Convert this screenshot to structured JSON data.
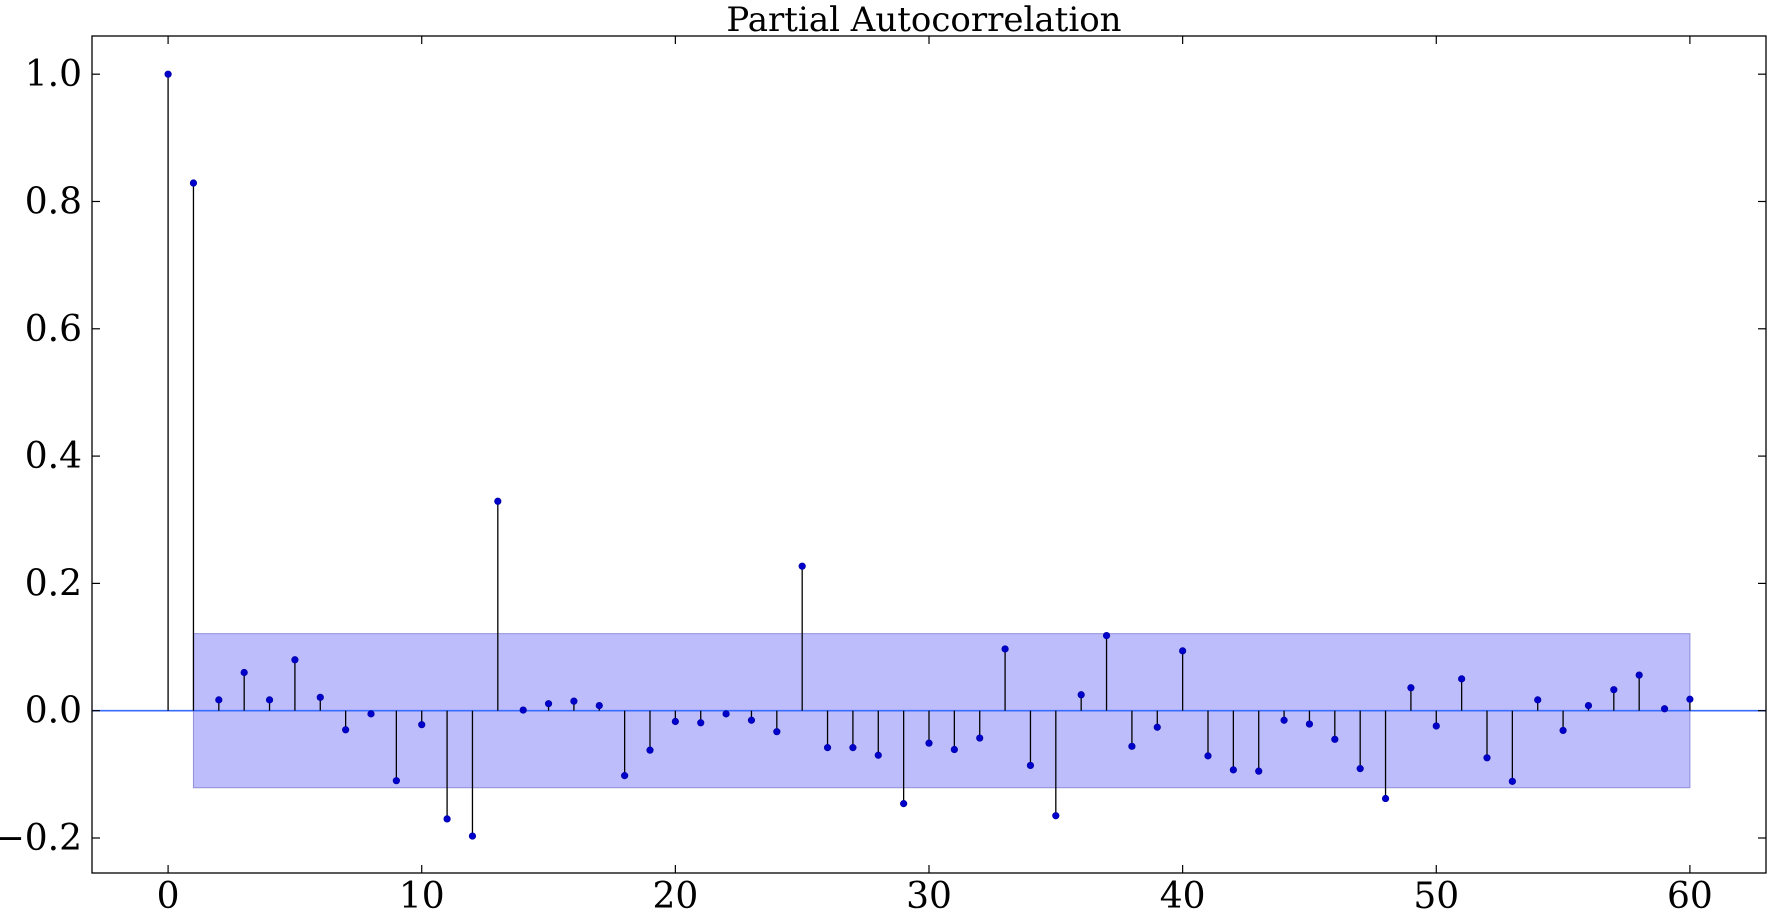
{
  "chart_data": {
    "type": "stem",
    "title": "Partial Autocorrelation",
    "xlabel": "",
    "ylabel": "",
    "xlim": [
      -3,
      63
    ],
    "ylim": [
      -0.255,
      1.06
    ],
    "x_ticks": [
      0,
      10,
      20,
      30,
      40,
      50,
      60
    ],
    "x_tick_labels": [
      "0",
      "10",
      "20",
      "30",
      "40",
      "50",
      "60"
    ],
    "y_ticks": [
      -0.2,
      0.0,
      0.2,
      0.4,
      0.6,
      0.8,
      1.0
    ],
    "y_tick_labels": [
      "−0.2",
      "0.0",
      "0.2",
      "0.4",
      "0.6",
      "0.8",
      "1.0"
    ],
    "confidence_band": {
      "x_start": 1,
      "x_end": 60,
      "lower": -0.121,
      "upper": 0.121
    },
    "series": [
      {
        "x": [
          0,
          1,
          2,
          3,
          4,
          5,
          6,
          7,
          8,
          9,
          10,
          11,
          12,
          13,
          14,
          15,
          16,
          17,
          18,
          19,
          20,
          21,
          22,
          23,
          24,
          25,
          26,
          27,
          28,
          29,
          30,
          31,
          32,
          33,
          34,
          35,
          36,
          37,
          38,
          39,
          40,
          41,
          42,
          43,
          44,
          45,
          46,
          47,
          48,
          49,
          50,
          51,
          52,
          53,
          54,
          55,
          56,
          57,
          58,
          59,
          60
        ],
        "values": [
          1.0,
          0.829,
          0.017,
          0.06,
          0.017,
          0.08,
          0.021,
          -0.03,
          -0.005,
          -0.11,
          -0.022,
          -0.17,
          -0.197,
          0.329,
          0.001,
          0.011,
          0.015,
          0.008,
          -0.102,
          -0.062,
          -0.017,
          -0.019,
          -0.005,
          -0.015,
          -0.033,
          0.227,
          -0.058,
          -0.058,
          -0.07,
          -0.146,
          -0.051,
          -0.061,
          -0.043,
          0.097,
          -0.086,
          -0.165,
          0.025,
          0.118,
          -0.056,
          -0.026,
          0.094,
          -0.071,
          -0.093,
          -0.095,
          -0.015,
          -0.021,
          -0.045,
          -0.091,
          -0.138,
          0.036,
          -0.024,
          0.05,
          -0.074,
          -0.111,
          0.017,
          -0.031,
          0.008,
          0.033,
          0.056,
          0.003,
          0.018
        ]
      }
    ],
    "colors": {
      "band_fill": "#bdbdfc",
      "band_stroke": "#8f8fd9",
      "zero_line": "#3a6bff",
      "marker": "#0000cc",
      "stem": "#000000"
    },
    "grid": false,
    "legend": "none"
  }
}
